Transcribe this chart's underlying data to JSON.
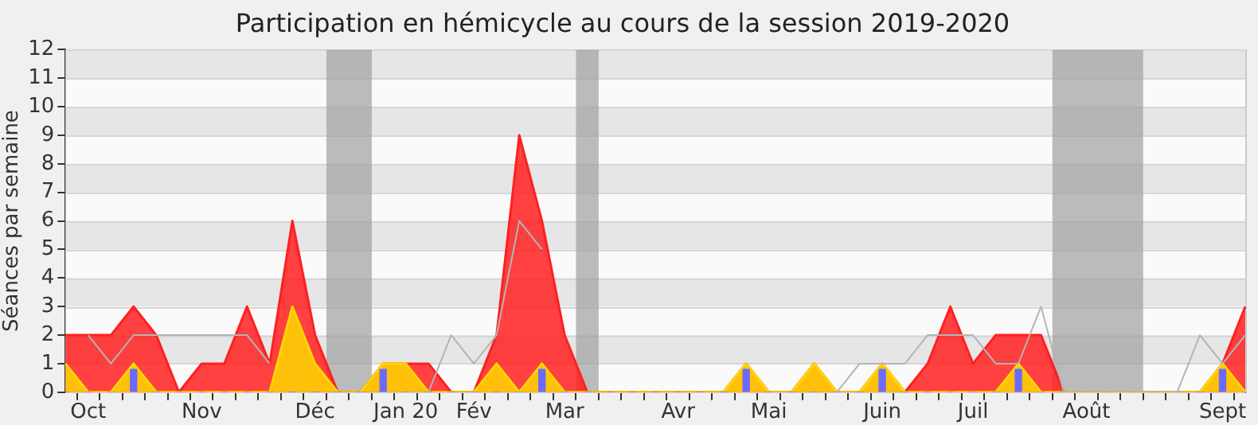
{
  "chart_data": {
    "type": "area",
    "title": "Participation en hémicycle au cours de la session 2019-2020",
    "ylabel": "Séances par semaine",
    "categories": [
      null,
      "Oct",
      null,
      null,
      null,
      null,
      "Nov",
      null,
      null,
      null,
      null,
      "Déc",
      null,
      null,
      null,
      "Jan 20",
      null,
      null,
      "Fév",
      null,
      null,
      null,
      "Mar",
      null,
      null,
      null,
      null,
      "Avr",
      null,
      null,
      null,
      "Mai",
      null,
      null,
      null,
      null,
      "Juin",
      null,
      null,
      null,
      "Juil",
      null,
      null,
      null,
      null,
      "Août",
      null,
      null,
      null,
      null,
      null,
      "Sept",
      null
    ],
    "series": [
      {
        "color": "#ff2020",
        "values": [
          2,
          2,
          2,
          3,
          2,
          0,
          1,
          1,
          3,
          1,
          6,
          2,
          0,
          0,
          1,
          1,
          1,
          0,
          0,
          2,
          9,
          6,
          2,
          0,
          0,
          0,
          0,
          0,
          0,
          0,
          1,
          0,
          0,
          1,
          0,
          0,
          1,
          0,
          1,
          3,
          1,
          2,
          2,
          2,
          0,
          0,
          0,
          0,
          0,
          0,
          0,
          1,
          3
        ]
      },
      {
        "color": "#ffd700",
        "values": [
          1,
          0,
          0,
          1,
          0,
          0,
          0,
          0,
          0,
          0,
          3,
          1,
          0,
          0,
          1,
          1,
          0,
          0,
          0,
          1,
          0,
          1,
          0,
          0,
          0,
          0,
          0,
          0,
          0,
          0,
          1,
          0,
          0,
          1,
          0,
          0,
          1,
          0,
          0,
          0,
          0,
          0,
          1,
          0,
          0,
          0,
          0,
          0,
          0,
          0,
          0,
          1,
          0
        ]
      },
      {
        "type": "bar",
        "color": "#6a6aff",
        "values": [
          0,
          0,
          0,
          0.8,
          0,
          0,
          0,
          0,
          0,
          0,
          0,
          0,
          0,
          0,
          0.8,
          0,
          0,
          0,
          0,
          0,
          0,
          0.8,
          0,
          0,
          0,
          0,
          0,
          0,
          0,
          0,
          0.8,
          0,
          0,
          0,
          0,
          0,
          0.8,
          0,
          0,
          0,
          0,
          0,
          0.8,
          0,
          0,
          0,
          0,
          0,
          0,
          0,
          0,
          0.8,
          0
        ]
      },
      {
        "type": "line",
        "color": "#b4b4b4",
        "values": [
          null,
          2,
          1,
          2,
          2,
          2,
          2,
          2,
          2,
          1,
          null,
          null,
          null,
          null,
          null,
          null,
          0,
          2,
          1,
          2,
          6,
          5,
          null,
          null,
          null,
          null,
          null,
          null,
          null,
          null,
          null,
          null,
          null,
          null,
          0,
          1,
          1,
          1,
          2,
          2,
          2,
          1,
          1,
          3,
          0,
          0,
          0,
          0,
          0,
          0,
          2,
          1,
          2
        ]
      }
    ],
    "ylim": [
      0,
      12
    ],
    "yticks": [
      0,
      1,
      2,
      3,
      4,
      5,
      6,
      7,
      8,
      9,
      10,
      11,
      12
    ],
    "grid": "y",
    "legend": false
  }
}
